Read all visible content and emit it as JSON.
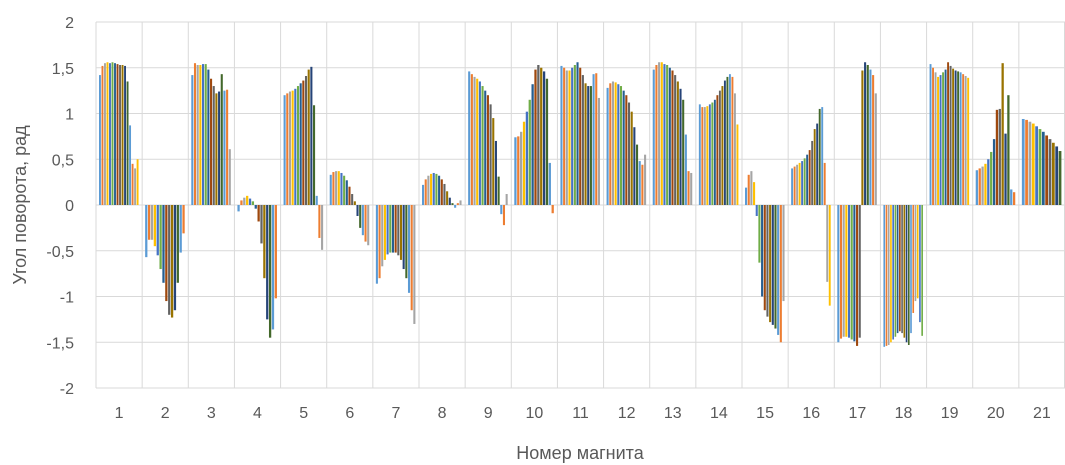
{
  "chart_data": {
    "type": "bar",
    "xlabel": "Номер магнита",
    "ylabel": "Угол поворота, рад",
    "ylim": [
      -2,
      2
    ],
    "yticks": [
      -2,
      -1.5,
      -1,
      -0.5,
      0,
      0.5,
      1,
      1.5,
      2
    ],
    "ytick_labels": [
      "-2",
      "-1,5",
      "-1",
      "-0,5",
      "0",
      "0,5",
      "1",
      "1,5",
      "2"
    ],
    "grid": true,
    "legend": "none",
    "categories": [
      "1",
      "2",
      "3",
      "4",
      "5",
      "6",
      "7",
      "8",
      "9",
      "10",
      "11",
      "12",
      "13",
      "14",
      "15",
      "16",
      "17",
      "18",
      "19",
      "20",
      "21"
    ],
    "palette": [
      "#5b9bd5",
      "#ed7d31",
      "#a5a5a5",
      "#ffc000",
      "#4472c4",
      "#70ad47",
      "#255e91",
      "#9e480e",
      "#636363",
      "#997300",
      "#264478",
      "#43682b"
    ],
    "groups": [
      [
        1.42,
        1.52,
        1.55,
        1.56,
        1.55,
        1.56,
        1.55,
        1.54,
        1.53,
        1.53,
        1.52,
        1.35,
        0.87,
        0.45,
        0.4,
        0.5
      ],
      [
        -0.57,
        -0.38,
        -0.38,
        -0.45,
        -0.55,
        -0.7,
        -0.85,
        -1.05,
        -1.2,
        -1.23,
        -1.15,
        -0.85,
        -0.52,
        -0.31
      ],
      [
        1.42,
        1.55,
        1.53,
        1.53,
        1.54,
        1.54,
        1.48,
        1.38,
        1.3,
        1.22,
        1.24,
        1.43,
        1.25,
        1.26,
        0.61
      ],
      [
        -0.07,
        0.05,
        0.08,
        0.1,
        0.07,
        0.04,
        -0.04,
        -0.18,
        -0.42,
        -0.8,
        -1.25,
        -1.45,
        -1.36,
        -1.02
      ],
      [
        1.2,
        1.22,
        1.24,
        1.25,
        1.27,
        1.3,
        1.33,
        1.36,
        1.41,
        1.48,
        1.51,
        1.09,
        0.1,
        -0.36,
        -0.49
      ],
      [
        0.33,
        0.36,
        0.37,
        0.37,
        0.35,
        0.32,
        0.27,
        0.2,
        0.12,
        0.04,
        -0.12,
        -0.25,
        -0.33,
        -0.4,
        -0.44
      ],
      [
        -0.86,
        -0.8,
        -0.67,
        -0.6,
        -0.54,
        -0.52,
        -0.52,
        -0.52,
        -0.55,
        -0.6,
        -0.7,
        -0.8,
        -0.96,
        -1.15,
        -1.3
      ],
      [
        0.22,
        0.28,
        0.32,
        0.34,
        0.35,
        0.34,
        0.32,
        0.28,
        0.23,
        0.15,
        0.08,
        0.02,
        -0.03,
        0.02,
        0.05
      ],
      [
        1.46,
        1.43,
        1.4,
        1.38,
        1.35,
        1.3,
        1.25,
        1.2,
        1.1,
        0.95,
        0.7,
        0.31,
        -0.1,
        -0.22,
        0.12
      ],
      [
        0.74,
        0.75,
        0.8,
        0.91,
        1.02,
        1.15,
        1.32,
        1.48,
        1.53,
        1.5,
        1.46,
        1.38,
        0.46,
        -0.09
      ],
      [
        1.52,
        1.5,
        1.47,
        1.47,
        1.5,
        1.53,
        1.56,
        1.5,
        1.42,
        1.33,
        1.3,
        1.3,
        1.43,
        1.44,
        1.17
      ],
      [
        1.28,
        1.33,
        1.35,
        1.34,
        1.32,
        1.3,
        1.25,
        1.2,
        1.12,
        1.02,
        0.85,
        0.66,
        0.48,
        0.44,
        0.55
      ],
      [
        1.48,
        1.53,
        1.56,
        1.56,
        1.54,
        1.53,
        1.5,
        1.47,
        1.42,
        1.35,
        1.27,
        1.15,
        0.77,
        0.37,
        0.35
      ],
      [
        1.1,
        1.07,
        1.07,
        1.08,
        1.1,
        1.12,
        1.15,
        1.2,
        1.25,
        1.3,
        1.36,
        1.4,
        1.43,
        1.4,
        1.22,
        0.88
      ],
      [
        0.19,
        0.33,
        0.37,
        0.25,
        -0.12,
        -0.63,
        -1.0,
        -1.15,
        -1.22,
        -1.28,
        -1.31,
        -1.35,
        -1.42,
        -1.5,
        -1.05
      ],
      [
        0.4,
        0.42,
        0.44,
        0.46,
        0.48,
        0.51,
        0.55,
        0.6,
        0.7,
        0.83,
        0.89,
        1.05,
        1.07,
        0.46,
        -0.84,
        -1.1
      ],
      [
        -1.5,
        -1.46,
        -1.44,
        -1.44,
        -1.45,
        -1.47,
        -1.49,
        -1.54,
        -1.45,
        1.47,
        1.56,
        1.53,
        1.48,
        1.42,
        1.22
      ],
      [
        -1.55,
        -1.54,
        -1.53,
        -1.5,
        -1.47,
        -1.44,
        -1.4,
        -1.38,
        -1.4,
        -1.45,
        -1.5,
        -1.53,
        -1.4,
        -1.18,
        -1.05,
        -1.02,
        -1.28,
        -1.43
      ],
      [
        1.54,
        1.5,
        1.45,
        1.4,
        1.42,
        1.45,
        1.48,
        1.56,
        1.52,
        1.49,
        1.47,
        1.46,
        1.45,
        1.43,
        1.41,
        1.39
      ],
      [
        0.38,
        0.4,
        0.42,
        0.45,
        0.5,
        0.58,
        0.72,
        1.04,
        1.05,
        1.55,
        0.78,
        1.2,
        0.17,
        0.14
      ],
      [
        0.94,
        0.93,
        0.91,
        0.89,
        0.86,
        0.83,
        0.8,
        0.76,
        0.72,
        0.68,
        0.64,
        0.59
      ]
    ]
  }
}
